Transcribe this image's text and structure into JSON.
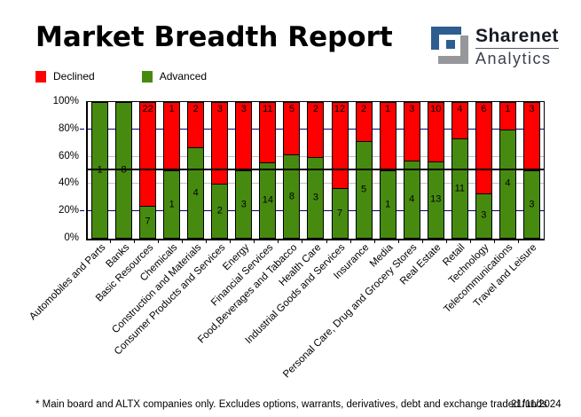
{
  "header": {
    "title": "Market Breadth Report",
    "logo": {
      "brand": "Sharenet",
      "product": "Analytics",
      "icon": "sharenet-s-icon",
      "icon_blue": "#2e5d90",
      "icon_gray": "#95979a"
    }
  },
  "legend": {
    "declined": "Declined",
    "advanced": "Advanced",
    "declined_color": "#ff0000",
    "advanced_color": "#478a10"
  },
  "chart_data": {
    "type": "bar",
    "stacked": true,
    "unit": "percent of advancers+decliners per sector",
    "categories": [
      "Automobiles and Parts",
      "Banks",
      "Basic Resources",
      "Chemicals",
      "Construction and Materials",
      "Consumer Products and Services",
      "Energy",
      "Financial Services",
      "Food,Beverages and Tabacco",
      "Health Care",
      "Industrial Goods and Services",
      "Insurance",
      "Media",
      "Personal Care, Drug and Grocery Stores",
      "Real Estate",
      "Retail",
      "Technology",
      "Telecommunications",
      "Travel and Leisure"
    ],
    "series": [
      {
        "name": "Declined",
        "color": "#ff0000",
        "values": [
          0,
          0,
          22,
          1,
          2,
          3,
          3,
          11,
          5,
          2,
          12,
          2,
          1,
          3,
          10,
          4,
          6,
          1,
          3
        ]
      },
      {
        "name": "Advanced",
        "color": "#478a10",
        "values": [
          1,
          8,
          7,
          1,
          4,
          2,
          3,
          14,
          8,
          3,
          7,
          5,
          1,
          4,
          13,
          11,
          3,
          4,
          3
        ]
      }
    ],
    "ylim": [
      0,
      100
    ],
    "yticks": [
      "0%",
      "20%",
      "40%",
      "60%",
      "80%",
      "100%"
    ],
    "gridlines": [
      {
        "pct": 20,
        "color": "#000080",
        "over_bars": false
      },
      {
        "pct": 40,
        "color": "#c0c0c0",
        "over_bars": false
      },
      {
        "pct": 60,
        "color": "#c0c0c0",
        "over_bars": false
      },
      {
        "pct": 80,
        "color": "#000080",
        "over_bars": false
      },
      {
        "pct": 50,
        "color": "#000000",
        "over_bars": true
      }
    ],
    "legend_position": "top-left",
    "xlabel": "",
    "ylabel": ""
  },
  "footer": {
    "note": "* Main board and ALTX companies only. Excludes options, warrants, derivatives, debt and exchange traded funds",
    "date": "21/11/2024"
  }
}
